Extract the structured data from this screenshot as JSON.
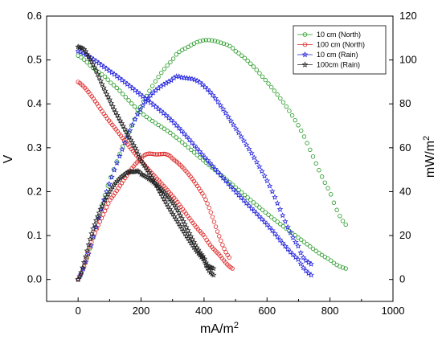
{
  "chart_data": {
    "type": "scatter",
    "title": "",
    "xlabel": "mA/m",
    "xlabel_sup": "2",
    "ylabel": "V",
    "y2label": "mW/m",
    "y2label_sup": "2",
    "xlim": [
      -100,
      1000
    ],
    "ylim": [
      -0.05,
      0.6
    ],
    "y2lim": [
      -10,
      120
    ],
    "xticks": [
      0,
      200,
      400,
      600,
      800,
      1000
    ],
    "yticks": [
      0.0,
      0.1,
      0.2,
      0.3,
      0.4,
      0.5,
      0.6
    ],
    "y2ticks": [
      0,
      20,
      40,
      60,
      80,
      100,
      120
    ],
    "grid": false,
    "legend_position": "top-right",
    "series": [
      {
        "name": "10 cm (North)",
        "color": "#229922",
        "marker": "circle",
        "voltage": {
          "x": [
            0,
            50,
            100,
            200,
            300,
            400,
            500,
            600,
            700,
            800,
            850
          ],
          "y": [
            0.51,
            0.48,
            0.45,
            0.38,
            0.33,
            0.27,
            0.21,
            0.15,
            0.095,
            0.045,
            0.025
          ]
        },
        "power": {
          "x": [
            0,
            100,
            200,
            300,
            350,
            400,
            450,
            500,
            600,
            700,
            800,
            850
          ],
          "y": [
            0,
            45,
            79,
            100,
            106,
            109,
            108,
            104,
            90,
            70,
            40,
            25
          ]
        }
      },
      {
        "name": "100 cm (North)",
        "color": "#dd2222",
        "marker": "circle",
        "voltage": {
          "x": [
            0,
            100,
            200,
            300,
            400,
            450,
            490
          ],
          "y": [
            0.45,
            0.36,
            0.27,
            0.19,
            0.1,
            0.055,
            0.025
          ]
        },
        "power": {
          "x": [
            0,
            50,
            100,
            200,
            250,
            300,
            400,
            480
          ],
          "y": [
            0,
            20,
            36,
            55,
            57,
            55,
            38,
            10
          ]
        }
      },
      {
        "name": "10 cm (Rain)",
        "color": "#2222dd",
        "marker": "star",
        "voltage": {
          "x": [
            0,
            100,
            200,
            300,
            400,
            500,
            600,
            700,
            740
          ],
          "y": [
            0.52,
            0.475,
            0.42,
            0.36,
            0.28,
            0.2,
            0.125,
            0.045,
            0.01
          ]
        },
        "power": {
          "x": [
            0,
            100,
            200,
            300,
            330,
            400,
            500,
            600,
            700,
            740
          ],
          "y": [
            0,
            44,
            78,
            91,
            92,
            88,
            69,
            45,
            15,
            7
          ]
        }
      },
      {
        "name": "100cm (Rain)",
        "color": "#222222",
        "marker": "star",
        "voltage": {
          "x": [
            0,
            30,
            100,
            150,
            200,
            300,
            400,
            430
          ],
          "y": [
            0.53,
            0.51,
            0.41,
            0.34,
            0.27,
            0.15,
            0.045,
            0.01
          ]
        },
        "power": {
          "x": [
            0,
            50,
            100,
            150,
            175,
            200,
            300,
            400,
            430
          ],
          "y": [
            0,
            24,
            40,
            48,
            49,
            48,
            35,
            10,
            5
          ]
        }
      }
    ]
  }
}
